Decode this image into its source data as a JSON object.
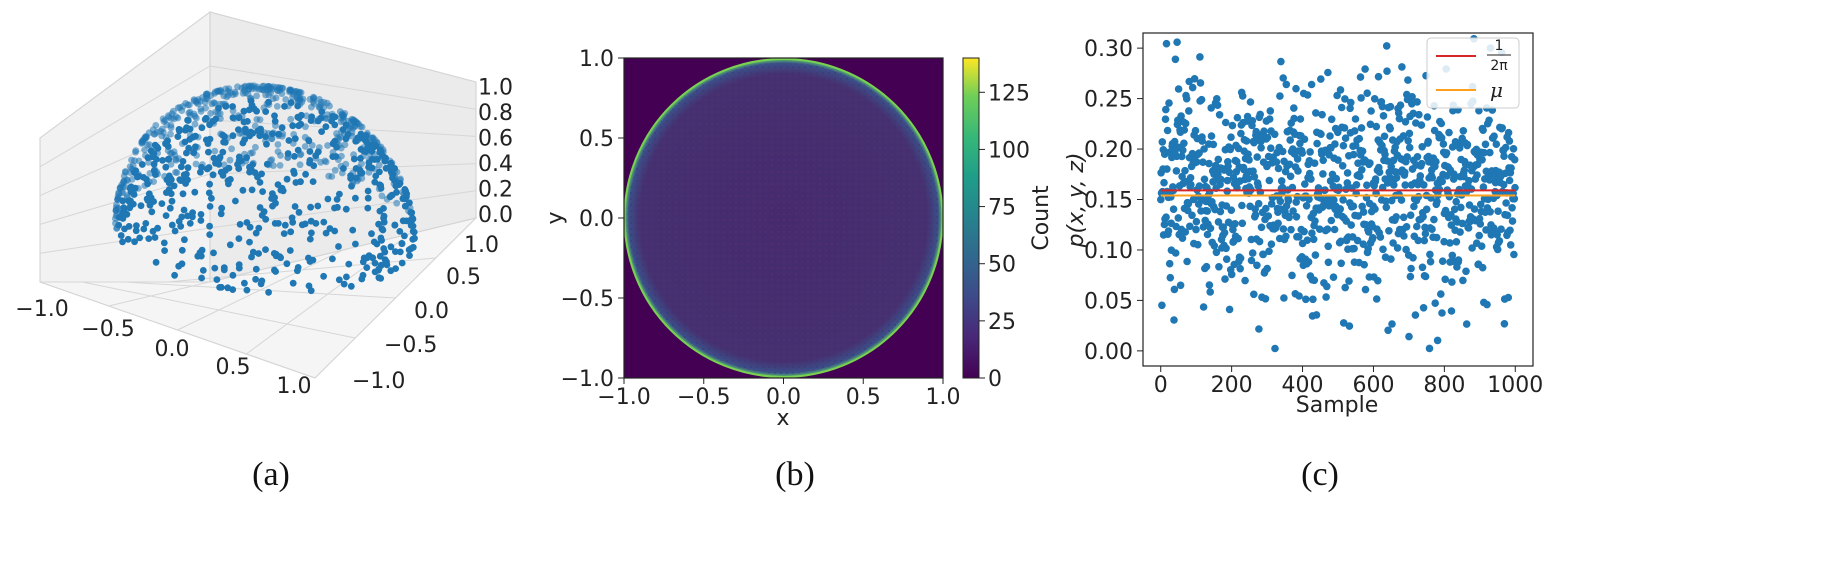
{
  "chart_data": [
    {
      "type": "scatter",
      "panel": "(a)",
      "caption": "(a)",
      "dimensions": 3,
      "description_of_shape": "points on upper unit hemisphere",
      "x_ticks": [
        "−1.0",
        "−0.5",
        "0.0",
        "0.5",
        "1.0"
      ],
      "y_ticks": [
        "−1.0",
        "−0.5",
        "0.0",
        "0.5",
        "1.0"
      ],
      "z_ticks": [
        "0.0",
        "0.2",
        "0.4",
        "0.6",
        "0.8",
        "1.0"
      ],
      "xlim": [
        -1,
        1
      ],
      "ylim": [
        -1,
        1
      ],
      "zlim": [
        0,
        1
      ],
      "n_points": 1000,
      "point_color": "#1f77b4"
    },
    {
      "type": "heatmap",
      "panel": "(b)",
      "caption": "(b)",
      "xlabel": "x",
      "ylabel": "y",
      "colorbar_label": "Count",
      "x_ticks": [
        "−1.0",
        "−0.5",
        "0.0",
        "0.5",
        "1.0"
      ],
      "y_ticks": [
        "−1.0",
        "−0.5",
        "0.0",
        "0.5",
        "1.0"
      ],
      "colorbar_ticks": [
        "0",
        "25",
        "50",
        "75",
        "100",
        "125"
      ],
      "xlim": [
        -1,
        1
      ],
      "ylim": [
        -1,
        1
      ],
      "colorbar_range": [
        0,
        140
      ],
      "disk_interior_count": 8,
      "rim_count": 140,
      "outside_count": 0,
      "colormap": "viridis"
    },
    {
      "type": "scatter",
      "panel": "(c)",
      "caption": "(c)",
      "xlabel": "Sample",
      "ylabel": "p(x, y, z)",
      "x_ticks": [
        "0",
        "200",
        "400",
        "600",
        "800",
        "1000"
      ],
      "y_ticks": [
        "0.00",
        "0.05",
        "0.10",
        "0.15",
        "0.20",
        "0.25",
        "0.30"
      ],
      "xlim": [
        -50,
        1050
      ],
      "ylim": [
        -0.015,
        0.315
      ],
      "legend": [
        {
          "label_num": "1",
          "label_den": "2π",
          "color": "#d62728"
        },
        {
          "label": "μ",
          "color": "#ff9f1c"
        }
      ],
      "legend_position": "top-right",
      "reference_lines": {
        "one_over_two_pi": 0.159,
        "mu": 0.154
      },
      "n_points": 1000,
      "point_color": "#1f77b4"
    }
  ]
}
